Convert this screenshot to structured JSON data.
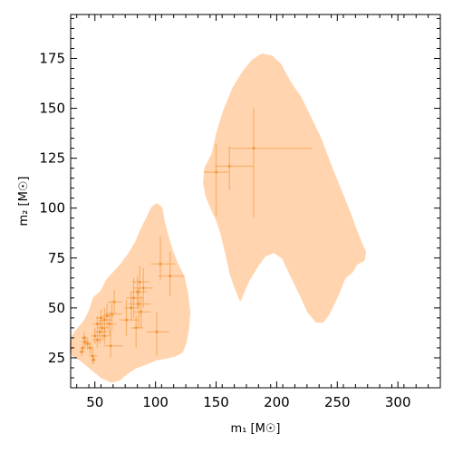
{
  "chart_data": {
    "type": "scatter",
    "xlabel": "m₁ [M☉]",
    "ylabel": "m₂ [M☉]",
    "xlim": [
      30,
      335
    ],
    "ylim": [
      10,
      197
    ],
    "xticks": [
      50,
      100,
      150,
      200,
      250,
      300
    ],
    "yticks": [
      25,
      50,
      75,
      100,
      125,
      150,
      175
    ],
    "grid": false,
    "colors": {
      "region": "#ffd4ae",
      "marker": "#f28c28",
      "axis": "#000000"
    },
    "regions": [
      {
        "outline": [
          [
            30,
            28
          ],
          [
            30,
            34
          ],
          [
            34,
            38
          ],
          [
            38,
            41
          ],
          [
            42,
            44
          ],
          [
            46,
            49
          ],
          [
            49,
            55
          ],
          [
            55,
            58
          ],
          [
            60,
            64
          ],
          [
            66,
            68
          ],
          [
            72,
            72
          ],
          [
            78,
            77
          ],
          [
            84,
            83
          ],
          [
            88,
            89
          ],
          [
            93,
            95
          ],
          [
            97,
            100
          ],
          [
            101,
            102
          ],
          [
            105,
            100
          ],
          [
            107,
            93
          ],
          [
            110,
            86
          ],
          [
            114,
            78
          ],
          [
            118,
            72
          ],
          [
            123,
            66
          ],
          [
            126,
            58
          ],
          [
            128,
            48
          ],
          [
            127,
            40
          ],
          [
            125,
            33
          ],
          [
            122,
            28
          ],
          [
            116,
            26
          ],
          [
            108,
            25
          ],
          [
            100,
            24
          ],
          [
            92,
            22
          ],
          [
            83,
            20
          ],
          [
            76,
            17
          ],
          [
            70,
            14
          ],
          [
            64,
            13
          ],
          [
            56,
            15
          ],
          [
            50,
            18
          ],
          [
            44,
            21
          ],
          [
            38,
            24
          ],
          [
            32,
            26
          ]
        ]
      },
      {
        "outline": [
          [
            147,
            127
          ],
          [
            151,
            138
          ],
          [
            156,
            148
          ],
          [
            164,
            160
          ],
          [
            172,
            168
          ],
          [
            180,
            174
          ],
          [
            188,
            177
          ],
          [
            196,
            176
          ],
          [
            203,
            172
          ],
          [
            211,
            163
          ],
          [
            220,
            155
          ],
          [
            228,
            145
          ],
          [
            236,
            135
          ],
          [
            244,
            122
          ],
          [
            252,
            110
          ],
          [
            260,
            98
          ],
          [
            266,
            88
          ],
          [
            270,
            82
          ],
          [
            273,
            78
          ],
          [
            272,
            74
          ],
          [
            266,
            72
          ],
          [
            262,
            68
          ],
          [
            256,
            65
          ],
          [
            250,
            56
          ],
          [
            243,
            47
          ],
          [
            238,
            43
          ],
          [
            233,
            43
          ],
          [
            226,
            48
          ],
          [
            220,
            56
          ],
          [
            212,
            66
          ],
          [
            205,
            75
          ],
          [
            198,
            78
          ],
          [
            190,
            76
          ],
          [
            184,
            71
          ],
          [
            177,
            64
          ],
          [
            172,
            57
          ],
          [
            170,
            54
          ],
          [
            166,
            60
          ],
          [
            162,
            67
          ],
          [
            158,
            78
          ],
          [
            154,
            88
          ],
          [
            150,
            95
          ],
          [
            146,
            100
          ],
          [
            142,
            106
          ],
          [
            140,
            113
          ],
          [
            141,
            120
          ]
        ]
      }
    ],
    "points": [
      {
        "x": 181,
        "y": 130,
        "xerr": [
          20,
          48
        ],
        "yerr": [
          35,
          20
        ]
      },
      {
        "x": 161,
        "y": 121,
        "xerr": [
          12,
          20
        ],
        "yerr": [
          12,
          10
        ]
      },
      {
        "x": 150,
        "y": 118,
        "xerr": [
          10,
          10
        ],
        "yerr": [
          22,
          14
        ]
      },
      {
        "x": 104,
        "y": 72,
        "xerr": [
          8,
          12
        ],
        "yerr": [
          8,
          14
        ]
      },
      {
        "x": 112,
        "y": 66,
        "xerr": [
          10,
          12
        ],
        "yerr": [
          10,
          12
        ]
      },
      {
        "x": 101,
        "y": 38,
        "xerr": [
          8,
          10
        ],
        "yerr": [
          12,
          10
        ]
      },
      {
        "x": 87,
        "y": 63,
        "xerr": [
          6,
          8
        ],
        "yerr": [
          6,
          8
        ]
      },
      {
        "x": 85,
        "y": 58,
        "xerr": [
          6,
          8
        ],
        "yerr": [
          8,
          8
        ]
      },
      {
        "x": 82,
        "y": 55,
        "xerr": [
          6,
          8
        ],
        "yerr": [
          10,
          10
        ]
      },
      {
        "x": 86,
        "y": 52,
        "xerr": [
          8,
          10
        ],
        "yerr": [
          12,
          8
        ]
      },
      {
        "x": 80,
        "y": 50,
        "xerr": [
          6,
          6
        ],
        "yerr": [
          6,
          8
        ]
      },
      {
        "x": 88,
        "y": 48,
        "xerr": [
          6,
          8
        ],
        "yerr": [
          8,
          8
        ]
      },
      {
        "x": 90,
        "y": 60,
        "xerr": [
          8,
          8
        ],
        "yerr": [
          10,
          10
        ]
      },
      {
        "x": 76,
        "y": 44,
        "xerr": [
          6,
          10
        ],
        "yerr": [
          8,
          10
        ]
      },
      {
        "x": 84,
        "y": 40,
        "xerr": [
          4,
          6
        ],
        "yerr": [
          10,
          6
        ]
      },
      {
        "x": 66,
        "y": 53,
        "xerr": [
          6,
          6
        ],
        "yerr": [
          6,
          6
        ]
      },
      {
        "x": 64,
        "y": 47,
        "xerr": [
          6,
          8
        ],
        "yerr": [
          8,
          6
        ]
      },
      {
        "x": 62,
        "y": 42,
        "xerr": [
          6,
          6
        ],
        "yerr": [
          6,
          6
        ]
      },
      {
        "x": 60,
        "y": 46,
        "xerr": [
          4,
          6
        ],
        "yerr": [
          6,
          6
        ]
      },
      {
        "x": 58,
        "y": 44,
        "xerr": [
          4,
          6
        ],
        "yerr": [
          6,
          6
        ]
      },
      {
        "x": 56,
        "y": 40,
        "xerr": [
          4,
          6
        ],
        "yerr": [
          6,
          4
        ]
      },
      {
        "x": 55,
        "y": 45,
        "xerr": [
          4,
          4
        ],
        "yerr": [
          4,
          4
        ]
      },
      {
        "x": 54,
        "y": 38,
        "xerr": [
          4,
          6
        ],
        "yerr": [
          6,
          6
        ]
      },
      {
        "x": 52,
        "y": 42,
        "xerr": [
          4,
          4
        ],
        "yerr": [
          4,
          4
        ]
      },
      {
        "x": 50,
        "y": 36,
        "xerr": [
          3,
          4
        ],
        "yerr": [
          4,
          4
        ]
      },
      {
        "x": 52,
        "y": 34,
        "xerr": [
          4,
          4
        ],
        "yerr": [
          4,
          4
        ]
      },
      {
        "x": 58,
        "y": 36,
        "xerr": [
          4,
          4
        ],
        "yerr": [
          4,
          4
        ]
      },
      {
        "x": 63,
        "y": 31,
        "xerr": [
          6,
          10
        ],
        "yerr": [
          6,
          8
        ]
      },
      {
        "x": 48,
        "y": 26,
        "xerr": [
          3,
          4
        ],
        "yerr": [
          4,
          4
        ]
      },
      {
        "x": 46,
        "y": 30,
        "xerr": [
          3,
          3
        ],
        "yerr": [
          3,
          3
        ]
      },
      {
        "x": 44,
        "y": 32,
        "xerr": [
          3,
          3
        ],
        "yerr": [
          3,
          3
        ]
      },
      {
        "x": 42,
        "y": 33,
        "xerr": [
          3,
          3
        ],
        "yerr": [
          3,
          3
        ]
      },
      {
        "x": 41,
        "y": 35,
        "xerr": [
          2,
          3
        ],
        "yerr": [
          3,
          3
        ]
      },
      {
        "x": 40,
        "y": 30,
        "xerr": [
          2,
          2
        ],
        "yerr": [
          2,
          2
        ]
      },
      {
        "x": 39,
        "y": 28,
        "xerr": [
          2,
          3
        ],
        "yerr": [
          2,
          2
        ]
      },
      {
        "x": 49,
        "y": 24,
        "xerr": [
          2,
          2
        ],
        "yerr": [
          2,
          2
        ]
      }
    ]
  }
}
